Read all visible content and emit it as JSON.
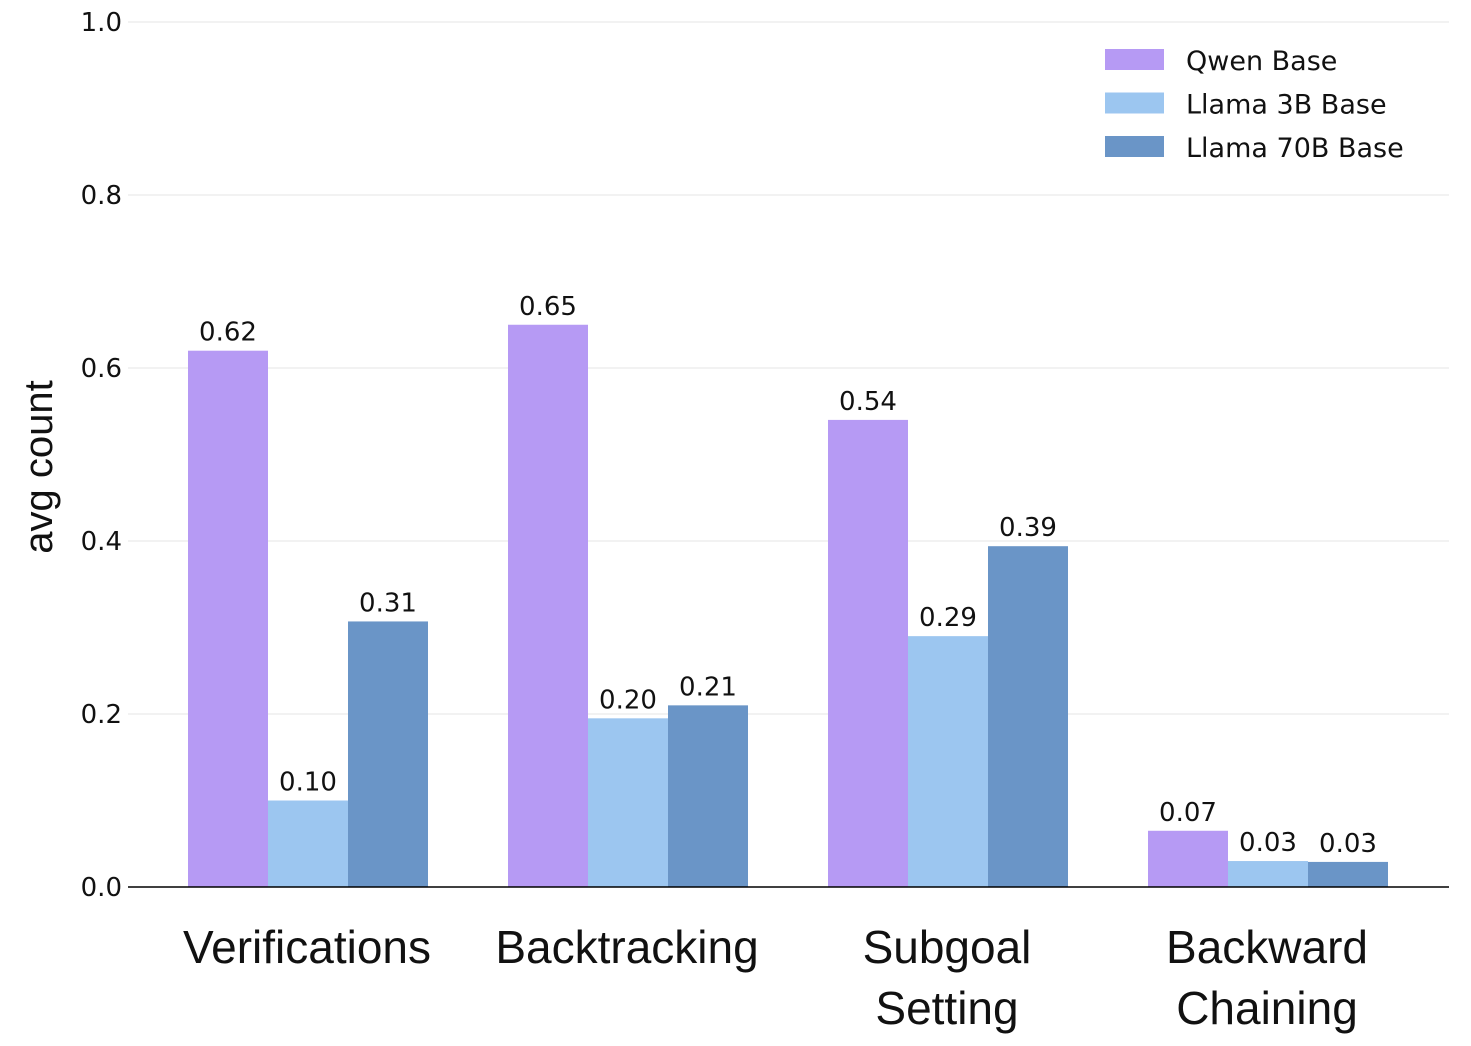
{
  "chart_data": {
    "type": "bar",
    "title": "",
    "xlabel": "",
    "ylabel": "avg count",
    "ylim": [
      0,
      1.0
    ],
    "yticks": [
      "0.0",
      "0.2",
      "0.4",
      "0.6",
      "0.8",
      "1.0"
    ],
    "grid": "horizontal",
    "legend_position": "top-right",
    "categories": [
      [
        "Verifications"
      ],
      [
        "Backtracking"
      ],
      [
        "Subgoal",
        "Setting"
      ],
      [
        "Backward",
        "Chaining"
      ]
    ],
    "series": [
      {
        "name": "Qwen Base",
        "color": "#b69af4",
        "values": [
          0.62,
          0.65,
          0.54,
          0.065
        ],
        "labels": [
          "0.62",
          "0.65",
          "0.54",
          "0.07"
        ]
      },
      {
        "name": "Llama 3B Base",
        "color": "#9cc6f0",
        "values": [
          0.1,
          0.195,
          0.29,
          0.03
        ],
        "labels": [
          "0.10",
          "0.20",
          "0.29",
          "0.03"
        ]
      },
      {
        "name": "Llama 70B Base",
        "color": "#6a95c7",
        "values": [
          0.307,
          0.21,
          0.394,
          0.029
        ],
        "labels": [
          "0.31",
          "0.21",
          "0.39",
          "0.03"
        ]
      }
    ]
  }
}
